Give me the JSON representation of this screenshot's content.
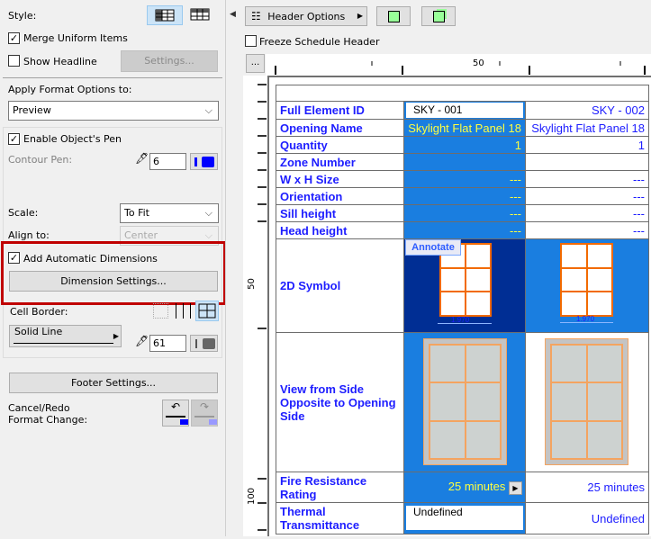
{
  "left": {
    "style_label": "Style:",
    "merge_label": "Merge Uniform Items",
    "merge_checked": true,
    "headline_label": "Show Headline",
    "headline_checked": false,
    "settings_btn": "Settings...",
    "apply_label": "Apply Format Options to:",
    "apply_value": "Preview",
    "pen_label": "Enable Object's Pen",
    "pen_checked": true,
    "contour_label": "Contour Pen:",
    "contour_value": "6",
    "scale_label": "Scale:",
    "scale_value": "To Fit",
    "align_label": "Align to:",
    "align_value": "Center",
    "autodim_label": "Add Automatic Dimensions",
    "autodim_checked": true,
    "dim_btn": "Dimension Settings...",
    "border_label": "Cell Border:",
    "line_value": "Solid Line",
    "border_pen": "61",
    "footer_btn": "Footer Settings...",
    "undo_label_1": "Cancel/Redo",
    "undo_label_2": "Format Change:",
    "highlight_color": "#c00000"
  },
  "toolbar": {
    "header_options": "Header Options",
    "freeze_label": "Freeze Schedule Header",
    "more": "..."
  },
  "ruler": {
    "h_label": "50",
    "v_label_1": "50",
    "v_label_2": "100"
  },
  "schedule": {
    "rows": [
      {
        "label": "Full Element ID",
        "c1": "SKY - 001",
        "c2": "SKY - 002"
      },
      {
        "label": "Opening Name",
        "c1": "Skylight Flat Panel 18",
        "c2": "Skylight Flat Panel 18"
      },
      {
        "label": "Quantity",
        "c1": "1",
        "c2": "1"
      },
      {
        "label": "Zone Number",
        "c1": "",
        "c2": ""
      },
      {
        "label": "W x H Size",
        "c1": "---",
        "c2": "---"
      },
      {
        "label": "Orientation",
        "c1": "---",
        "c2": "---"
      },
      {
        "label": "Sill height",
        "c1": "---",
        "c2": "---"
      },
      {
        "label": "Head height",
        "c1": "---",
        "c2": "---"
      }
    ],
    "symbol_label": "2D Symbol",
    "annotate": "Annotate",
    "dim_1": "1.970",
    "dim_2": "1.970",
    "view_label": "View from Side Opposite to Opening Side",
    "fire_label": "Fire Resistance Rating",
    "fire_c1": "25 minutes",
    "fire_c2": "25 minutes",
    "thermal_label": "Thermal Transmittance",
    "thermal_c1": "Undefined",
    "thermal_c2": "Undefined",
    "selected_color": "#1a7ee0",
    "text_color": "#1d1dff"
  }
}
